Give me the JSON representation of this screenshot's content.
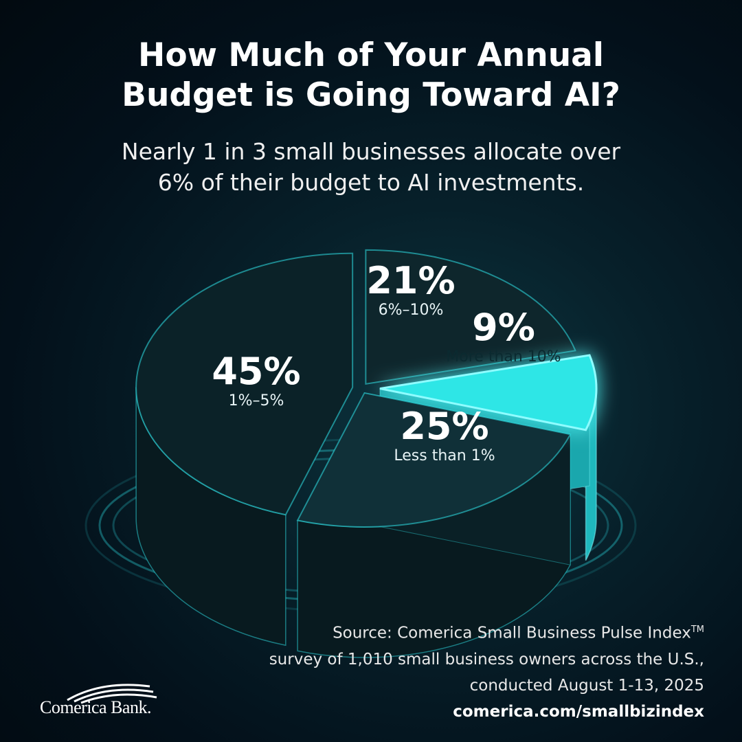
{
  "header": {
    "title_line1": "How Much of Your Annual",
    "title_line2": "Budget is Going Toward AI?",
    "subtitle_line1": "Nearly 1 in 3 small businesses allocate over",
    "subtitle_line2": "6% of their budget to AI investments."
  },
  "chart_data": {
    "type": "pie",
    "title": "How Much of Your Annual Budget is Going Toward AI?",
    "slices": [
      {
        "label": "6%–10%",
        "value": 21,
        "display": "21%",
        "color": "#0e262c",
        "highlight": false
      },
      {
        "label": "More than 10%",
        "value": 9,
        "display": "9%",
        "color": "#2ee6e6",
        "highlight": true
      },
      {
        "label": "Less than 1%",
        "value": 25,
        "display": "25%",
        "color": "#103038",
        "highlight": false
      },
      {
        "label": "1%–5%",
        "value": 45,
        "display": "45%",
        "color": "#0b2228",
        "highlight": false
      }
    ],
    "accent_color": "#2fe0e6"
  },
  "footer": {
    "source_line1": "Source: Comerica Small Business Pulse Index",
    "source_tm": "TM",
    "source_line2": "survey of 1,010 small business owners across the U.S.,",
    "source_line3": "conducted August 1-13, 2025",
    "url": "comerica.com/smallbizindex",
    "logo_text": "Comerica Bank."
  }
}
